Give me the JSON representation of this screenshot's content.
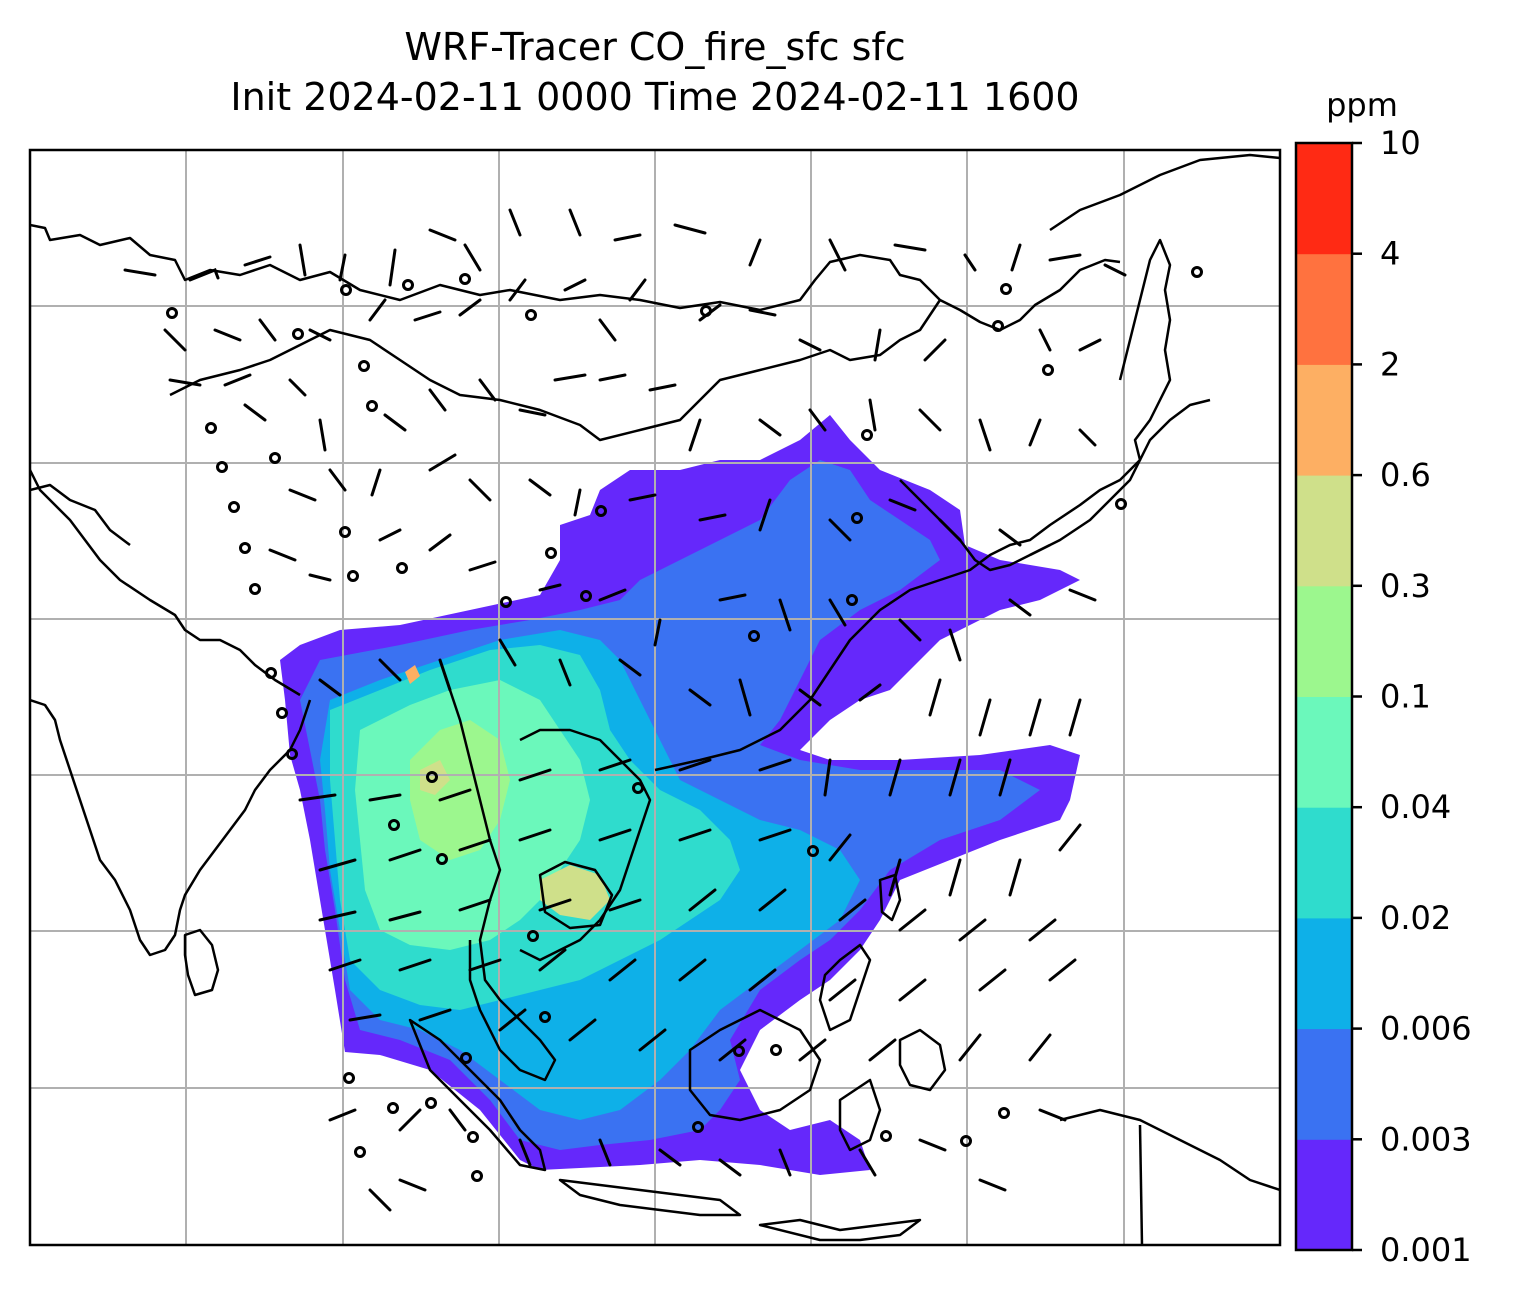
{
  "title_line1": "WRF-Tracer CO_fire_sfc sfc",
  "title_line2": "Init 2024-02-11 0000 Time 2024-02-11 1600",
  "colorbar": {
    "unit": "ppm",
    "levels": [
      {
        "label": "0.001",
        "color": "#6528fb"
      },
      {
        "label": "0.003",
        "color": "#3a72f2"
      },
      {
        "label": "0.006",
        "color": "#0eb0e8"
      },
      {
        "label": "0.02",
        "color": "#2fdccd"
      },
      {
        "label": "0.04",
        "color": "#6bf8bb"
      },
      {
        "label": "0.1",
        "color": "#9cf78e"
      },
      {
        "label": "0.3",
        "color": "#cfe08a"
      },
      {
        "label": "0.6",
        "color": "#fdaf63"
      },
      {
        "label": "2",
        "color": "#ff723f"
      },
      {
        "label": "4",
        "color": "#ff2a14"
      },
      {
        "label": "10",
        "color": null
      }
    ]
  },
  "map": {
    "field": "CO_fire_sfc",
    "gridlines": true,
    "coastlines": true,
    "wind_barbs": true
  }
}
